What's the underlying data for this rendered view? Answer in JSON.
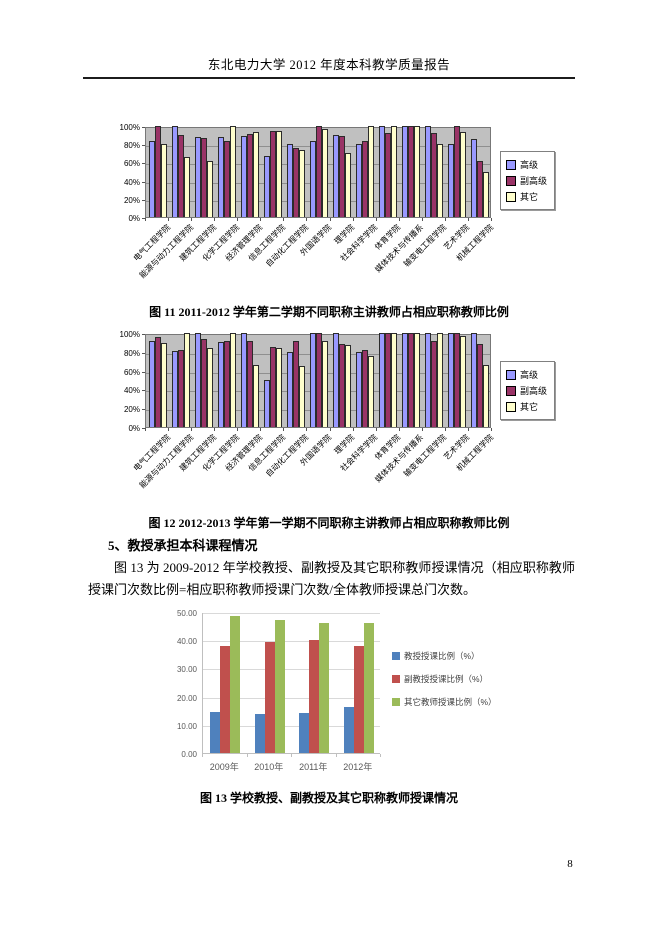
{
  "header": {
    "title": "东北电力大学 2012 年度本科教学质量报告"
  },
  "page_number": "8",
  "captions": {
    "fig11": "图 11 2011-2012 学年第二学期不同职称主讲教师占相应职称教师比例",
    "fig12": "图 12 2012-2013 学年第一学期不同职称主讲教师占相应职称教师比例",
    "fig13": "图 13 学校教授、副教授及其它职称教师授课情况"
  },
  "section": {
    "heading": "5、教授承担本科课程情况",
    "paragraph": "图 13 为 2009-2012 年学校教授、副教授及其它职称教师授课情况（相应职称教师授课门次数比例=相应职称教师授课门次数/全体教师授课总门次数。"
  },
  "chart_data": [
    {
      "id": "fig11",
      "type": "bar",
      "title": "",
      "categories": [
        "电气工程学院",
        "能源与动力工程学院",
        "建筑工程学院",
        "化学工程学院",
        "经济管理学院",
        "信息工程学院",
        "自动化工程学院",
        "外国语学院",
        "理学院",
        "社会科学学院",
        "体育学院",
        "媒体技术与传播系",
        "输变电工程学院",
        "艺术学院",
        "机械工程学院"
      ],
      "series": [
        {
          "name": "高级",
          "color": "#9999FF",
          "values": [
            84,
            100,
            88,
            88,
            89,
            67,
            80,
            83,
            90,
            80,
            100,
            100,
            100,
            80,
            86
          ]
        },
        {
          "name": "副高级",
          "color": "#993366",
          "values": [
            100,
            90,
            87,
            83,
            91,
            95,
            76,
            100,
            89,
            83,
            92,
            100,
            92,
            100,
            62
          ]
        },
        {
          "name": "其它",
          "color": "#FFFFCC",
          "values": [
            80,
            66,
            62,
            100,
            93,
            94,
            74,
            97,
            70,
            100,
            100,
            100,
            80,
            93,
            50
          ]
        }
      ],
      "ylim": [
        0,
        100
      ],
      "yticks": [
        "0%",
        "20%",
        "40%",
        "60%",
        "80%",
        "100%"
      ],
      "plot_bg": "#C0C0C0",
      "legend_position": "right",
      "grid": true
    },
    {
      "id": "fig12",
      "type": "bar",
      "title": "",
      "categories": [
        "电气工程学院",
        "能源与动力工程学院",
        "建筑工程学院",
        "化学工程学院",
        "经济管理学院",
        "信息工程学院",
        "自动化工程学院",
        "外国语学院",
        "理学院",
        "社会科学学院",
        "体育学院",
        "媒体技术与传播系",
        "输变电工程学院",
        "艺术学院",
        "机械工程学院"
      ],
      "series": [
        {
          "name": "高级",
          "color": "#9999FF",
          "values": [
            92,
            81,
            100,
            90,
            100,
            50,
            80,
            100,
            100,
            80,
            100,
            100,
            100,
            100,
            100
          ]
        },
        {
          "name": "副高级",
          "color": "#993366",
          "values": [
            96,
            82,
            94,
            92,
            92,
            85,
            92,
            100,
            88,
            82,
            100,
            100,
            92,
            100,
            88
          ]
        },
        {
          "name": "其它",
          "color": "#FFFFCC",
          "values": [
            89,
            100,
            84,
            100,
            66,
            84,
            65,
            92,
            87,
            76,
            100,
            100,
            100,
            97,
            66
          ]
        }
      ],
      "ylim": [
        0,
        100
      ],
      "yticks": [
        "0%",
        "20%",
        "40%",
        "60%",
        "80%",
        "100%"
      ],
      "plot_bg": "#C0C0C0",
      "legend_position": "right",
      "grid": true
    },
    {
      "id": "fig13",
      "type": "bar",
      "title": "",
      "categories": [
        "2009年",
        "2010年",
        "2011年",
        "2012年"
      ],
      "series": [
        {
          "name": "教授授课比例（%）",
          "color": "#4F81BD",
          "values": [
            14.5,
            14.0,
            14.3,
            16.2
          ]
        },
        {
          "name": "副教授授课比例（%）",
          "color": "#C0504D",
          "values": [
            37.8,
            39.3,
            40.2,
            37.8
          ]
        },
        {
          "name": "其它教师授课比例（%）",
          "color": "#9BBB59",
          "values": [
            48.6,
            47.3,
            46.2,
            46.2
          ]
        }
      ],
      "ylim": [
        0,
        50
      ],
      "yticks": [
        "0.00",
        "10.00",
        "20.00",
        "30.00",
        "40.00",
        "50.00"
      ],
      "plot_bg": "#FFFFFF",
      "legend_position": "right",
      "grid": true
    }
  ]
}
